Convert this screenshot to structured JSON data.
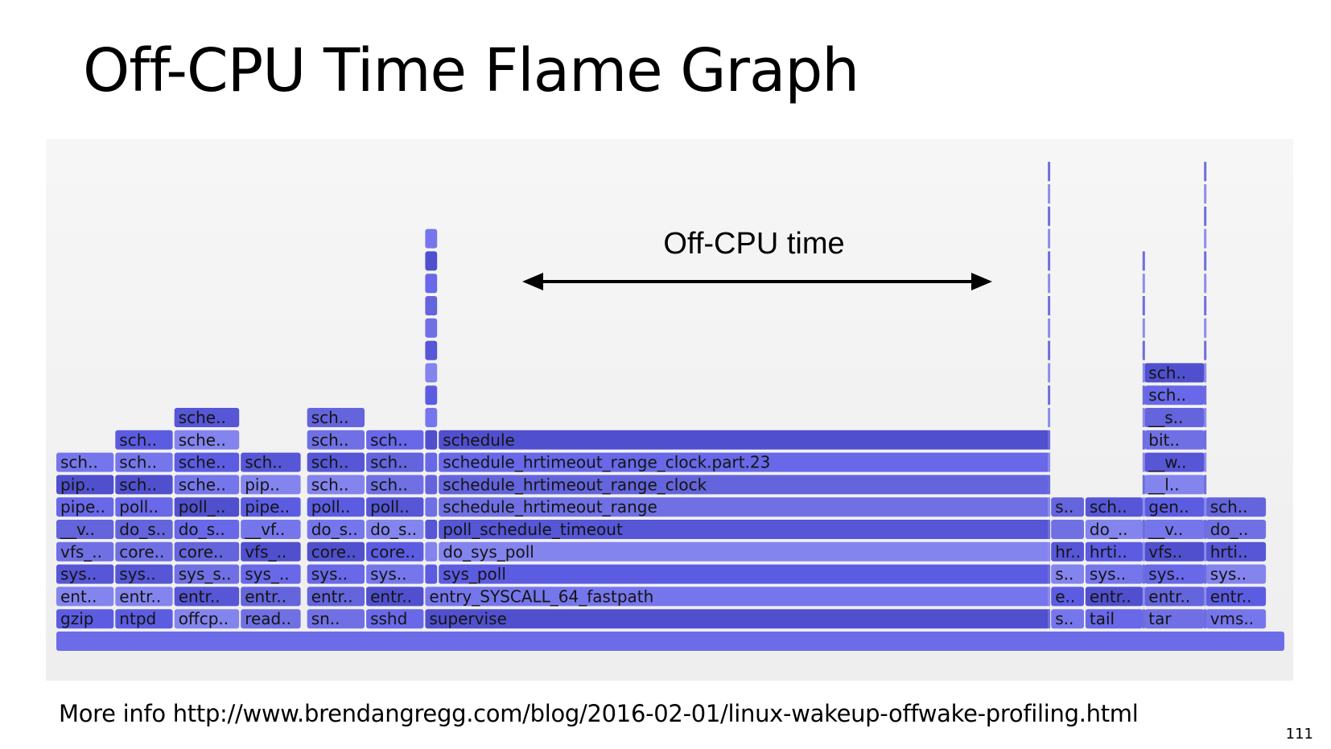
{
  "title": "Off-CPU Time Flame Graph",
  "footer": "More info http://www.brendangregg.com/blog/2016-02-01/linux-wakeup-offwake-profiling.html",
  "page_number": "111",
  "colors": {
    "frame_fill_base": "#6060e6",
    "frame_text": "#141414",
    "background": "#f2f2f2"
  },
  "chart_data": {
    "type": "flame",
    "annotation": "Off-CPU time",
    "x_total_samples": 1000,
    "frames": [
      {
        "label": "",
        "start": 0,
        "width": 1000,
        "depth": 0
      },
      {
        "label": "gzip",
        "start": 0,
        "width": 48,
        "depth": 1
      },
      {
        "label": "ent..",
        "start": 0,
        "width": 48,
        "depth": 2
      },
      {
        "label": "sys..",
        "start": 0,
        "width": 48,
        "depth": 3
      },
      {
        "label": "vfs_..",
        "start": 0,
        "width": 48,
        "depth": 4
      },
      {
        "label": "__v..",
        "start": 0,
        "width": 48,
        "depth": 5
      },
      {
        "label": "pipe..",
        "start": 0,
        "width": 48,
        "depth": 6
      },
      {
        "label": "pip..",
        "start": 0,
        "width": 48,
        "depth": 7
      },
      {
        "label": "sch..",
        "start": 0,
        "width": 48,
        "depth": 8
      },
      {
        "label": "ntpd",
        "start": 48,
        "width": 48,
        "depth": 1
      },
      {
        "label": "entr..",
        "start": 48,
        "width": 48,
        "depth": 2
      },
      {
        "label": "sys..",
        "start": 48,
        "width": 48,
        "depth": 3
      },
      {
        "label": "core..",
        "start": 48,
        "width": 48,
        "depth": 4
      },
      {
        "label": "do_s..",
        "start": 48,
        "width": 48,
        "depth": 5
      },
      {
        "label": "poll..",
        "start": 48,
        "width": 48,
        "depth": 6
      },
      {
        "label": "sch..",
        "start": 48,
        "width": 48,
        "depth": 7
      },
      {
        "label": "sch..",
        "start": 48,
        "width": 48,
        "depth": 8
      },
      {
        "label": "sch..",
        "start": 48,
        "width": 48,
        "depth": 9
      },
      {
        "label": "offcp..",
        "start": 96,
        "width": 54,
        "depth": 1
      },
      {
        "label": "entr..",
        "start": 96,
        "width": 54,
        "depth": 2
      },
      {
        "label": "sys_s..",
        "start": 96,
        "width": 54,
        "depth": 3
      },
      {
        "label": "core..",
        "start": 96,
        "width": 54,
        "depth": 4
      },
      {
        "label": "do_s..",
        "start": 96,
        "width": 54,
        "depth": 5
      },
      {
        "label": "poll_..",
        "start": 96,
        "width": 54,
        "depth": 6
      },
      {
        "label": "sche..",
        "start": 96,
        "width": 54,
        "depth": 7
      },
      {
        "label": "sche..",
        "start": 96,
        "width": 54,
        "depth": 8
      },
      {
        "label": "sche..",
        "start": 96,
        "width": 54,
        "depth": 9
      },
      {
        "label": "sche..",
        "start": 96,
        "width": 54,
        "depth": 10
      },
      {
        "label": "read..",
        "start": 150,
        "width": 50,
        "depth": 1
      },
      {
        "label": "entr..",
        "start": 150,
        "width": 50,
        "depth": 2
      },
      {
        "label": "sys_..",
        "start": 150,
        "width": 50,
        "depth": 3
      },
      {
        "label": "vfs_..",
        "start": 150,
        "width": 50,
        "depth": 4
      },
      {
        "label": "__vf..",
        "start": 150,
        "width": 50,
        "depth": 5
      },
      {
        "label": "pipe..",
        "start": 150,
        "width": 50,
        "depth": 6
      },
      {
        "label": "pip..",
        "start": 150,
        "width": 50,
        "depth": 7
      },
      {
        "label": "sch..",
        "start": 150,
        "width": 50,
        "depth": 8
      },
      {
        "label": "sn..",
        "start": 204,
        "width": 48,
        "depth": 1
      },
      {
        "label": "entr..",
        "start": 204,
        "width": 48,
        "depth": 2
      },
      {
        "label": "sys..",
        "start": 204,
        "width": 48,
        "depth": 3
      },
      {
        "label": "core..",
        "start": 204,
        "width": 48,
        "depth": 4
      },
      {
        "label": "do_s..",
        "start": 204,
        "width": 48,
        "depth": 5
      },
      {
        "label": "poll..",
        "start": 204,
        "width": 48,
        "depth": 6
      },
      {
        "label": "sch..",
        "start": 204,
        "width": 48,
        "depth": 7
      },
      {
        "label": "sch..",
        "start": 204,
        "width": 48,
        "depth": 8
      },
      {
        "label": "sch..",
        "start": 204,
        "width": 48,
        "depth": 9
      },
      {
        "label": "sch..",
        "start": 204,
        "width": 48,
        "depth": 10
      },
      {
        "label": "sshd",
        "start": 252,
        "width": 48,
        "depth": 1
      },
      {
        "label": "entr..",
        "start": 252,
        "width": 48,
        "depth": 2
      },
      {
        "label": "sys..",
        "start": 252,
        "width": 48,
        "depth": 3
      },
      {
        "label": "core..",
        "start": 252,
        "width": 48,
        "depth": 4
      },
      {
        "label": "do_s..",
        "start": 252,
        "width": 48,
        "depth": 5
      },
      {
        "label": "poll..",
        "start": 252,
        "width": 48,
        "depth": 6
      },
      {
        "label": "sch..",
        "start": 252,
        "width": 48,
        "depth": 7
      },
      {
        "label": "sch..",
        "start": 252,
        "width": 48,
        "depth": 8
      },
      {
        "label": "sch..",
        "start": 252,
        "width": 48,
        "depth": 9
      },
      {
        "label": "supervise",
        "start": 300,
        "width": 509,
        "depth": 1
      },
      {
        "label": "entry_SYSCALL_64_fastpath",
        "start": 300,
        "width": 509,
        "depth": 2
      },
      {
        "label": "",
        "start": 300,
        "width": 11,
        "depth": 3
      },
      {
        "label": "",
        "start": 300,
        "width": 11,
        "depth": 4
      },
      {
        "label": "",
        "start": 300,
        "width": 11,
        "depth": 5
      },
      {
        "label": "",
        "start": 300,
        "width": 11,
        "depth": 6
      },
      {
        "label": "",
        "start": 300,
        "width": 11,
        "depth": 7
      },
      {
        "label": "",
        "start": 300,
        "width": 11,
        "depth": 8
      },
      {
        "label": "",
        "start": 300,
        "width": 11,
        "depth": 9
      },
      {
        "label": "",
        "start": 300,
        "width": 11,
        "depth": 10
      },
      {
        "label": "",
        "start": 300,
        "width": 11,
        "depth": 11
      },
      {
        "label": "",
        "start": 300,
        "width": 11,
        "depth": 12
      },
      {
        "label": "",
        "start": 300,
        "width": 11,
        "depth": 13
      },
      {
        "label": "",
        "start": 300,
        "width": 11,
        "depth": 14
      },
      {
        "label": "",
        "start": 300,
        "width": 11,
        "depth": 15
      },
      {
        "label": "",
        "start": 300,
        "width": 11,
        "depth": 16
      },
      {
        "label": "",
        "start": 300,
        "width": 11,
        "depth": 17
      },
      {
        "label": "",
        "start": 300,
        "width": 11,
        "depth": 18
      },
      {
        "label": "sys_poll",
        "start": 311,
        "width": 498,
        "depth": 3
      },
      {
        "label": "do_sys_poll",
        "start": 311,
        "width": 498,
        "depth": 4
      },
      {
        "label": "poll_schedule_timeout",
        "start": 311,
        "width": 498,
        "depth": 5
      },
      {
        "label": "schedule_hrtimeout_range",
        "start": 311,
        "width": 498,
        "depth": 6
      },
      {
        "label": "schedule_hrtimeout_range_clock",
        "start": 311,
        "width": 498,
        "depth": 7
      },
      {
        "label": "schedule_hrtimeout_range_clock.part.23",
        "start": 311,
        "width": 498,
        "depth": 8
      },
      {
        "label": "schedule",
        "start": 311,
        "width": 498,
        "depth": 9
      },
      {
        "label": "s..",
        "start": 809,
        "width": 28,
        "depth": 1
      },
      {
        "label": "e..",
        "start": 809,
        "width": 28,
        "depth": 2
      },
      {
        "label": "s..",
        "start": 809,
        "width": 28,
        "depth": 3
      },
      {
        "label": "hr..",
        "start": 809,
        "width": 28,
        "depth": 4
      },
      {
        "label": "",
        "start": 809,
        "width": 28,
        "depth": 5
      },
      {
        "label": "s..",
        "start": 809,
        "width": 28,
        "depth": 6
      },
      {
        "label": "tail",
        "start": 837,
        "width": 48,
        "depth": 1
      },
      {
        "label": "entr..",
        "start": 837,
        "width": 48,
        "depth": 2
      },
      {
        "label": "sys..",
        "start": 837,
        "width": 48,
        "depth": 3
      },
      {
        "label": "hrti..",
        "start": 837,
        "width": 48,
        "depth": 4
      },
      {
        "label": "do_..",
        "start": 837,
        "width": 48,
        "depth": 5
      },
      {
        "label": "sch..",
        "start": 837,
        "width": 48,
        "depth": 6
      },
      {
        "label": "tar",
        "start": 885,
        "width": 50,
        "depth": 1
      },
      {
        "label": "entr..",
        "start": 885,
        "width": 50,
        "depth": 2
      },
      {
        "label": "sys..",
        "start": 885,
        "width": 50,
        "depth": 3
      },
      {
        "label": "vfs..",
        "start": 885,
        "width": 50,
        "depth": 4
      },
      {
        "label": "__v..",
        "start": 885,
        "width": 50,
        "depth": 5
      },
      {
        "label": "gen..",
        "start": 885,
        "width": 50,
        "depth": 6
      },
      {
        "label": "__l..",
        "start": 885,
        "width": 50,
        "depth": 7
      },
      {
        "label": "__w..",
        "start": 885,
        "width": 50,
        "depth": 8
      },
      {
        "label": "bit..",
        "start": 885,
        "width": 50,
        "depth": 9
      },
      {
        "label": "__s..",
        "start": 885,
        "width": 50,
        "depth": 10
      },
      {
        "label": "sch..",
        "start": 885,
        "width": 50,
        "depth": 11
      },
      {
        "label": "sch..",
        "start": 885,
        "width": 50,
        "depth": 12
      },
      {
        "label": "vms..",
        "start": 935,
        "width": 50,
        "depth": 1
      },
      {
        "label": "entr..",
        "start": 935,
        "width": 50,
        "depth": 2
      },
      {
        "label": "sys..",
        "start": 935,
        "width": 50,
        "depth": 3
      },
      {
        "label": "hrti..",
        "start": 935,
        "width": 50,
        "depth": 4
      },
      {
        "label": "do_..",
        "start": 935,
        "width": 50,
        "depth": 5
      },
      {
        "label": "sch..",
        "start": 935,
        "width": 50,
        "depth": 6
      }
    ],
    "thin_stacks": [
      {
        "x": 808,
        "top_depth": 21
      },
      {
        "x": 885,
        "top_depth": 17
      },
      {
        "x": 935,
        "top_depth": 21
      }
    ]
  }
}
